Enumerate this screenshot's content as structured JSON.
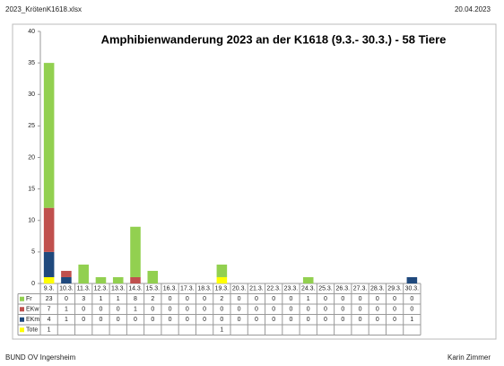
{
  "header": {
    "filename": "2023_KrötenK1618.xlsx",
    "date": "20.04.2023"
  },
  "footer": {
    "left": "BUND OV Ingersheim",
    "right": "Karin Zimmer"
  },
  "chart_data": {
    "type": "bar",
    "stacked": true,
    "title": "Amphibienwanderung 2023 an der K1618 (9.3.- 30.3.) - 58 Tiere",
    "categories": [
      "9.3.",
      "10.3.",
      "11.3.",
      "12.3.",
      "13.3.",
      "14.3.",
      "15.3.",
      "16.3.",
      "17.3.",
      "18.3.",
      "19.3.",
      "20.3.",
      "21.3.",
      "22.3.",
      "23.3.",
      "24.3.",
      "25.3.",
      "26.3.",
      "27.3.",
      "28.3.",
      "29.3.",
      "30.3."
    ],
    "series": [
      {
        "name": "Fr",
        "color": "#92d050",
        "values": [
          23,
          0,
          3,
          1,
          1,
          8,
          2,
          0,
          0,
          0,
          2,
          0,
          0,
          0,
          0,
          1,
          0,
          0,
          0,
          0,
          0,
          0
        ]
      },
      {
        "name": "EKw",
        "color": "#c0504d",
        "values": [
          7,
          1,
          0,
          0,
          0,
          1,
          0,
          0,
          0,
          0,
          0,
          0,
          0,
          0,
          0,
          0,
          0,
          0,
          0,
          0,
          0,
          0
        ]
      },
      {
        "name": "EKm",
        "color": "#1f497d",
        "values": [
          4,
          1,
          0,
          0,
          0,
          0,
          0,
          0,
          0,
          0,
          0,
          0,
          0,
          0,
          0,
          0,
          0,
          0,
          0,
          0,
          0,
          1
        ]
      },
      {
        "name": "Tote",
        "color": "#ffff00",
        "values": [
          1,
          null,
          null,
          null,
          null,
          null,
          null,
          null,
          null,
          null,
          1,
          null,
          null,
          null,
          null,
          null,
          null,
          null,
          null,
          null,
          null,
          null
        ]
      }
    ],
    "ylim": [
      0,
      40
    ],
    "yticks": [
      0,
      5,
      10,
      15,
      20,
      25,
      30,
      35,
      40
    ],
    "grid": false
  }
}
